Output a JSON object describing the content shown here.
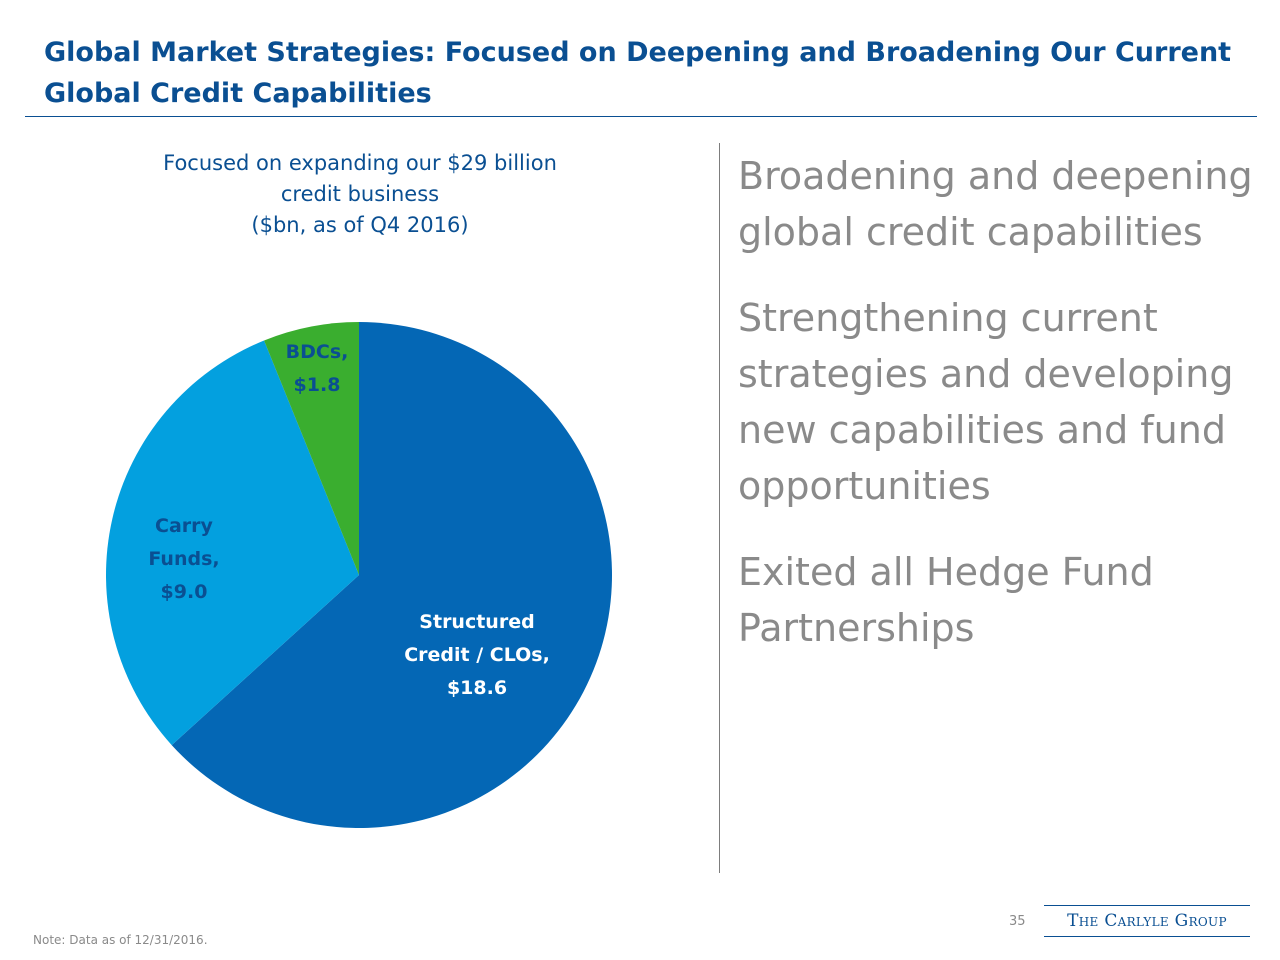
{
  "header": {
    "title": "Global Market Strategies: Focused on Deepening and Broadening Our Current Global Credit Capabilities"
  },
  "chart_caption": {
    "line1": "Focused on expanding our $29 billion",
    "line2": "credit business",
    "line3": "($bn, as of Q4 2016)"
  },
  "chart_data": {
    "type": "pie",
    "slices": [
      {
        "label": [
          "Structured",
          "Credit / CLOs,",
          "$18.6"
        ],
        "value": 18.6,
        "color": "#0467b5",
        "label_color": "#ffffff"
      },
      {
        "label": [
          "Carry",
          "Funds,",
          "$9.0"
        ],
        "value": 9.0,
        "color": "#03a0df",
        "label_color": "#0a4f92"
      },
      {
        "label": [
          "BDCs,",
          "$1.8"
        ],
        "value": 1.8,
        "color": "#3aae2f",
        "label_color": "#0a4f92"
      }
    ],
    "units": "$bn",
    "start_angle": "12 o'clock",
    "direction": "clockwise"
  },
  "bullets": [
    "Broadening and deepening global credit capabilities",
    "Strengthening current strategies and developing new capabilities and fund opportunities",
    "Exited all Hedge Fund Partnerships"
  ],
  "footer": {
    "page_number": "35",
    "logo_text": "The Carlyle Group",
    "note": "Note: Data as of 12/31/2016."
  },
  "colors": {
    "title": "#0a4f92",
    "body_gray": "#8a8a8a"
  }
}
